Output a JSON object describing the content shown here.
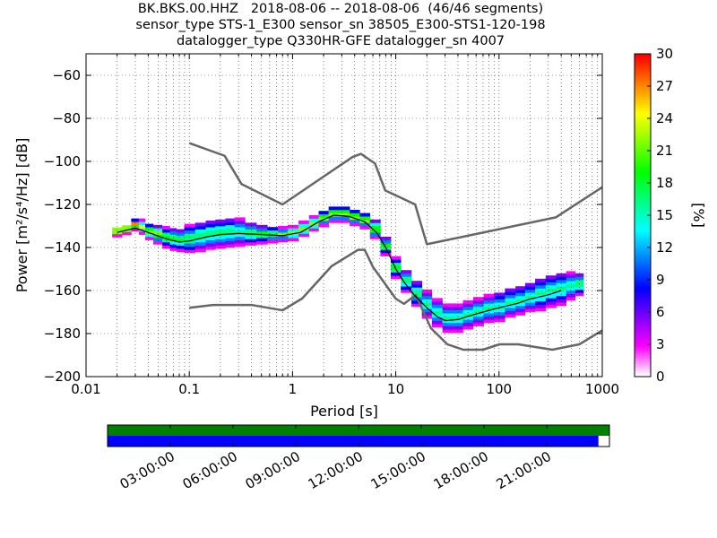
{
  "title": {
    "line1": "BK.BKS.00.HHZ   2018-08-06 -- 2018-08-06  (46/46 segments)",
    "line2": "sensor_type STS-1_E300 sensor_sn 38505_E300-STS1-120-198",
    "line3": "datalogger_type Q330HR-GFE datalogger_sn 4007"
  },
  "chart_data": [
    {
      "type": "heatmap",
      "xlabel": "Period [s]",
      "ylabel": "Power [m²/s⁴/Hz] [dB]",
      "xscale": "log",
      "xlim": [
        0.01,
        1000
      ],
      "ylim": [
        -200,
        -50
      ],
      "x_ticks": [
        0.01,
        0.1,
        1,
        10,
        100,
        1000
      ],
      "x_tick_labels": [
        "0.01",
        "0.1",
        "1",
        "10",
        "100",
        "1000"
      ],
      "y_ticks": [
        -200,
        -180,
        -160,
        -140,
        -120,
        -100,
        -80,
        -60
      ],
      "y_tick_labels": [
        "−200",
        "−180",
        "−160",
        "−140",
        "−120",
        "−100",
        "−80",
        "−60"
      ],
      "grid": true,
      "colorbar": {
        "label": "[%]",
        "range": [
          0,
          30
        ],
        "ticks": [
          0,
          3,
          6,
          9,
          12,
          15,
          18,
          21,
          24,
          27,
          30
        ],
        "tick_labels": [
          "0",
          "3",
          "6",
          "9",
          "12",
          "15",
          "18",
          "21",
          "24",
          "27",
          "30"
        ],
        "colormap": [
          "#ffffff",
          "#ff00ff",
          "#8000ff",
          "#0000ff",
          "#0080ff",
          "#00ffff",
          "#00ff80",
          "#00ff00",
          "#80ff00",
          "#ffff00",
          "#ff8000",
          "#ff0000"
        ]
      },
      "series": [
        {
          "kind": "noise-model-high",
          "color": "#666666",
          "x": [
            0.1,
            0.22,
            0.32,
            0.8,
            3.8,
            4.6,
            6.3,
            7.9,
            15.4,
            20,
            354.8,
            1000
          ],
          "y": [
            -91.5,
            -97.4,
            -110.5,
            -120,
            -98,
            -96.5,
            -101,
            -113.5,
            -120,
            -138.5,
            -126,
            -112
          ]
        },
        {
          "kind": "noise-model-low",
          "color": "#666666",
          "x": [
            0.1,
            0.17,
            0.4,
            0.8,
            1.24,
            2.4,
            4.3,
            5.0,
            6.0,
            10.0,
            12.0,
            15.6,
            21.9,
            31.6,
            45,
            70,
            101,
            154,
            328,
            600,
            1000
          ],
          "y": [
            -168,
            -166.7,
            -166.7,
            -169.2,
            -163.7,
            -148.6,
            -141.1,
            -141.1,
            -149,
            -163.8,
            -166.2,
            -162.1,
            -177.5,
            -185,
            -187.5,
            -187.5,
            -185,
            -185,
            -187.5,
            -185,
            -178.5
          ]
        },
        {
          "kind": "mode",
          "color": "#000000",
          "x": [
            0.02,
            0.03,
            0.04,
            0.06,
            0.08,
            0.1,
            0.15,
            0.2,
            0.3,
            0.5,
            0.8,
            1.2,
            1.8,
            2.5,
            3.5,
            5,
            6.5,
            8,
            10,
            12,
            15,
            20,
            25,
            30,
            40,
            50,
            70,
            100,
            150,
            200,
            300,
            400
          ],
          "y": [
            -133,
            -131,
            -133,
            -136,
            -137.5,
            -137,
            -135,
            -134,
            -133.5,
            -134,
            -134.5,
            -133,
            -128,
            -125,
            -125.5,
            -128,
            -133,
            -140,
            -150,
            -156,
            -162,
            -168,
            -172,
            -174,
            -173.5,
            -172,
            -170,
            -168,
            -166,
            -164,
            -162,
            -160
          ]
        }
      ],
      "psd_density": [
        {
          "x": 0.02,
          "center": -133,
          "spread": 1.2,
          "peak": 28
        },
        {
          "x": 0.025,
          "center": -132,
          "spread": 1.2,
          "peak": 28
        },
        {
          "x": 0.03,
          "center": -130,
          "spread": 1.5,
          "peak": 28
        },
        {
          "x": 0.035,
          "center": -131,
          "spread": 2,
          "peak": 24
        },
        {
          "x": 0.04,
          "center": -133,
          "spread": 2.5,
          "peak": 22
        },
        {
          "x": 0.05,
          "center": -134.5,
          "spread": 3,
          "peak": 20
        },
        {
          "x": 0.06,
          "center": -136,
          "spread": 3.5,
          "peak": 18
        },
        {
          "x": 0.07,
          "center": -136.5,
          "spread": 4,
          "peak": 17
        },
        {
          "x": 0.08,
          "center": -137,
          "spread": 4,
          "peak": 17
        },
        {
          "x": 0.1,
          "center": -136.5,
          "spread": 5,
          "peak": 16
        },
        {
          "x": 0.13,
          "center": -135.5,
          "spread": 5.5,
          "peak": 15
        },
        {
          "x": 0.16,
          "center": -134.5,
          "spread": 5.5,
          "peak": 15
        },
        {
          "x": 0.2,
          "center": -134,
          "spread": 5.5,
          "peak": 15
        },
        {
          "x": 0.25,
          "center": -133.5,
          "spread": 5.5,
          "peak": 15
        },
        {
          "x": 0.3,
          "center": -133.5,
          "spread": 5,
          "peak": 15
        },
        {
          "x": 0.4,
          "center": -134,
          "spread": 4,
          "peak": 16
        },
        {
          "x": 0.5,
          "center": -134.5,
          "spread": 3,
          "peak": 17
        },
        {
          "x": 0.65,
          "center": -134.5,
          "spread": 2.5,
          "peak": 18
        },
        {
          "x": 0.8,
          "center": -134.5,
          "spread": 2,
          "peak": 19
        },
        {
          "x": 1.0,
          "center": -134,
          "spread": 2,
          "peak": 20
        },
        {
          "x": 1.3,
          "center": -132,
          "spread": 2,
          "peak": 20
        },
        {
          "x": 1.6,
          "center": -129.5,
          "spread": 2,
          "peak": 20
        },
        {
          "x": 2.0,
          "center": -127,
          "spread": 2.5,
          "peak": 20
        },
        {
          "x": 2.5,
          "center": -125,
          "spread": 2.5,
          "peak": 20
        },
        {
          "x": 3.2,
          "center": -125,
          "spread": 2.5,
          "peak": 20
        },
        {
          "x": 4.0,
          "center": -126.5,
          "spread": 2.5,
          "peak": 20
        },
        {
          "x": 5.0,
          "center": -128,
          "spread": 2.5,
          "peak": 20
        },
        {
          "x": 6.3,
          "center": -132,
          "spread": 3,
          "peak": 19
        },
        {
          "x": 8.0,
          "center": -140,
          "spread": 3,
          "peak": 18
        },
        {
          "x": 10.0,
          "center": -150,
          "spread": 3.5,
          "peak": 17
        },
        {
          "x": 12.5,
          "center": -156,
          "spread": 4,
          "peak": 16
        },
        {
          "x": 16.0,
          "center": -162,
          "spread": 4.5,
          "peak": 15
        },
        {
          "x": 20.0,
          "center": -167,
          "spread": 5,
          "peak": 15
        },
        {
          "x": 25.0,
          "center": -171,
          "spread": 5,
          "peak": 15
        },
        {
          "x": 32.0,
          "center": -173.5,
          "spread": 5,
          "peak": 15
        },
        {
          "x": 40.0,
          "center": -173.5,
          "spread": 5,
          "peak": 15
        },
        {
          "x": 50.0,
          "center": -172,
          "spread": 5,
          "peak": 15
        },
        {
          "x": 63.0,
          "center": -170.5,
          "spread": 5,
          "peak": 15
        },
        {
          "x": 80.0,
          "center": -169,
          "spread": 5,
          "peak": 15
        },
        {
          "x": 100.0,
          "center": -168,
          "spread": 5.5,
          "peak": 14
        },
        {
          "x": 130.0,
          "center": -166,
          "spread": 5.5,
          "peak": 14
        },
        {
          "x": 160.0,
          "center": -165,
          "spread": 5.5,
          "peak": 14
        },
        {
          "x": 200.0,
          "center": -163.5,
          "spread": 5.5,
          "peak": 14
        },
        {
          "x": 250.0,
          "center": -162.5,
          "spread": 6,
          "peak": 14
        },
        {
          "x": 320.0,
          "center": -161,
          "spread": 6,
          "peak": 14
        },
        {
          "x": 400.0,
          "center": -160,
          "spread": 6,
          "peak": 14
        },
        {
          "x": 500.0,
          "center": -158.5,
          "spread": 5,
          "peak": 15
        },
        {
          "x": 600.0,
          "center": -157.5,
          "spread": 4,
          "peak": 16
        }
      ]
    },
    {
      "type": "timeline",
      "name": "data availability",
      "row_colors": [
        "#008000",
        "#0000ff"
      ],
      "coverage_fraction": 0.978,
      "x_tick_labels": [
        "03:00:00",
        "06:00:00",
        "09:00:00",
        "12:00:00",
        "15:00:00",
        "18:00:00",
        "21:00:00"
      ],
      "x_tick_hours": [
        3,
        6,
        9,
        12,
        15,
        18,
        21
      ],
      "x_range_hours": [
        0,
        24
      ]
    }
  ]
}
